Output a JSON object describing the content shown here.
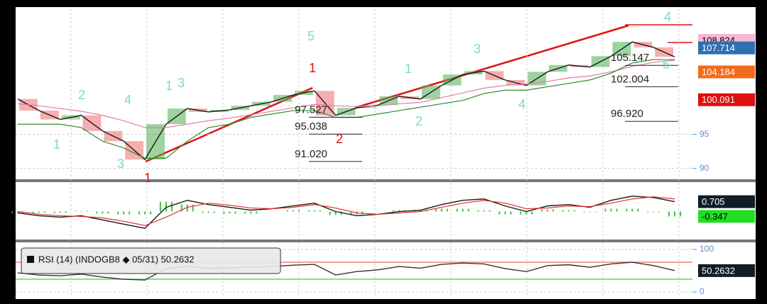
{
  "chart_data": [
    {
      "type": "line",
      "ylim": [
        88.5,
        113.2
      ],
      "yticks": [
        90,
        95
      ],
      "series": [
        {
          "color": "#1a1a1a",
          "values": [
            100.2,
            98.5,
            97.2,
            97.8,
            95.5,
            94,
            91.3,
            96.5,
            98.8,
            98.3,
            98.6,
            99.2,
            99.8,
            100.8,
            101.4,
            97.8,
            98.9,
            99.3,
            100.6,
            100.2,
            102.2,
            103.8,
            104.3,
            103,
            102.2,
            104.2,
            105.2,
            104.9,
            106.5,
            108.6,
            107.8,
            106.4
          ]
        },
        {
          "color": "#e87aa8",
          "values": [
            99.5,
            99.2,
            98.8,
            98.4,
            97.8,
            97,
            96,
            96,
            96.5,
            97,
            97.4,
            97.9,
            98.4,
            98.9,
            99.4,
            99.2,
            99.1,
            99.2,
            99.5,
            99.7,
            100.4,
            101.1,
            101.8,
            102.2,
            102.4,
            102.8,
            103.3,
            103.6,
            104.2,
            105,
            105.6,
            105.9
          ]
        },
        {
          "color": "#2e8b2e",
          "values": [
            96.5,
            96.5,
            96.5,
            96,
            94,
            93,
            91.5,
            91.5,
            94,
            96,
            96.5,
            97.5,
            98,
            98.5,
            98.5,
            97.5,
            97.5,
            98,
            98.5,
            99,
            99.5,
            100,
            101,
            101.5,
            101.5,
            102,
            102.5,
            103,
            104,
            105.5,
            106,
            106
          ]
        }
      ],
      "candles": true,
      "price_tags": [
        {
          "value": 108.824,
          "color": "#f7b6d2",
          "text_color": "#000"
        },
        {
          "value": 107.714,
          "color": "#2f6fb0",
          "text_color": "#fff"
        },
        {
          "value": 104.184,
          "color": "#f26b1d",
          "text_color": "#fff"
        },
        {
          "value": 100.091,
          "color": "#e01010",
          "text_color": "#fff"
        }
      ],
      "annotations": [
        97.527,
        95.038,
        {
          "value": 91.02,
          "label": "91.020"
        },
        105.147,
        102.004,
        {
          "value": 96.92,
          "label": "96.920"
        }
      ],
      "wave_labels": [
        "1",
        "2",
        "3",
        "4",
        "1",
        "3",
        "5",
        "1",
        "2",
        "3",
        "4",
        "5",
        "4",
        "1",
        "2",
        "1"
      ],
      "wave_colors": [
        "#7fd6cf",
        "#7fd6cf",
        "#7fd6cf",
        "#7fd6cf",
        "#7fd6cf",
        "#7fd6cf",
        "#7fd6cf",
        "#7fd6cf",
        "#7fd6cf",
        "#7fd6cf",
        "#7fd6cf",
        "#7fd6cf",
        "#7fd6cf",
        "#e01010",
        "#e01010",
        "#e01010"
      ]
    },
    {
      "type": "macd",
      "ylim": [
        -1.95,
        1.85
      ],
      "series": [
        {
          "color": "#1a1a1a",
          "values": [
            -0.1,
            -0.3,
            -0.4,
            -0.3,
            -0.6,
            -0.9,
            -1.2,
            0.3,
            0.8,
            0.5,
            0.3,
            0.1,
            0.2,
            0.4,
            0.6,
            0.0,
            -0.3,
            -0.2,
            0.0,
            0.1,
            0.5,
            0.8,
            0.9,
            0.4,
            0.0,
            0.4,
            0.5,
            0.3,
            0.8,
            1.1,
            1.0,
            0.705
          ]
        },
        {
          "color": "#e03030",
          "values": [
            0.0,
            -0.2,
            -0.3,
            -0.35,
            -0.45,
            -0.7,
            -1.0,
            -0.4,
            0.3,
            0.6,
            0.45,
            0.25,
            0.2,
            0.3,
            0.5,
            0.25,
            -0.1,
            -0.2,
            -0.1,
            0.0,
            0.3,
            0.6,
            0.8,
            0.6,
            0.2,
            0.25,
            0.4,
            0.35,
            0.6,
            0.9,
            1.05,
            0.9
          ]
        }
      ],
      "histogram": {
        "color": "#3cc83c",
        "values": [
          -0.1,
          -0.1,
          -0.1,
          0.05,
          -0.15,
          -0.2,
          -0.2,
          0.7,
          0.5,
          -0.1,
          -0.15,
          -0.15,
          0,
          0.1,
          0.1,
          -0.25,
          -0.2,
          0,
          0.1,
          0.1,
          0.2,
          0.2,
          0.1,
          -0.2,
          -0.2,
          0.15,
          0.1,
          -0.05,
          0.2,
          0.2,
          -0.05,
          -0.347
        ]
      },
      "price_tags": [
        {
          "value": 0.705,
          "color": "#111c26",
          "text_color": "#fff"
        },
        {
          "value": -0.347,
          "color": "#22dd22",
          "text_color": "#000"
        }
      ]
    },
    {
      "type": "rsi",
      "ylim": [
        -13.3,
        111.7
      ],
      "yticks": [
        0,
        100
      ],
      "legend_text": "RSI (14) (INDOGB8 ◆ 05/31) 50.2632",
      "series": [
        {
          "color": "#333",
          "values": [
            45,
            40,
            38,
            42,
            35,
            30,
            28,
            55,
            60,
            55,
            57,
            58,
            60,
            63,
            65,
            40,
            48,
            52,
            60,
            56,
            65,
            68,
            66,
            55,
            48,
            62,
            64,
            58,
            66,
            70,
            62,
            50.2632
          ]
        }
      ],
      "levels": [
        {
          "value": 70,
          "color": "#f08080"
        },
        {
          "value": 30,
          "color": "#6ccf6c"
        }
      ],
      "price_tags": [
        {
          "value": 50.2632,
          "color": "#111c26",
          "text_color": "#fff"
        }
      ]
    }
  ]
}
